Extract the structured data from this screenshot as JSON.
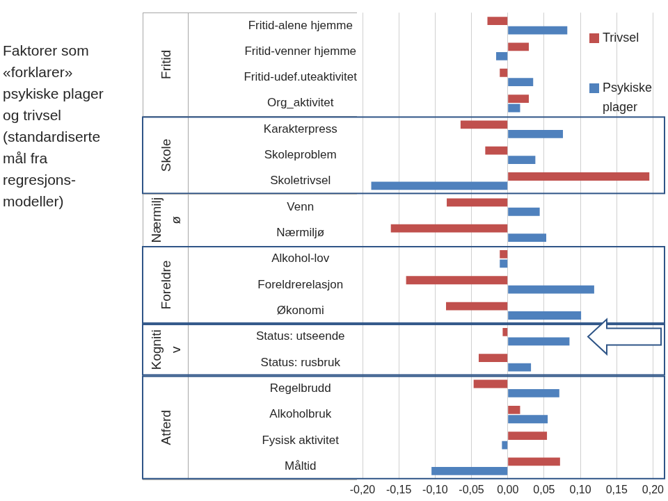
{
  "chart_data": {
    "type": "bar",
    "orientation": "horizontal",
    "title": [
      "Faktorer som",
      "«forklarer»",
      "psykiske plager",
      "og trivsel",
      "(standardiserte",
      "mål fra",
      "regresjons-",
      "modeller)"
    ],
    "categories": [
      "Fritid-alene hjemme",
      "Fritid-venner hjemme",
      "Fritid-udef.uteaktivitet",
      "Org_aktivitet",
      "Karakterpress",
      "Skoleproblem",
      "Skoletrivsel",
      "Venn",
      "Nærmiljø",
      "Alkohol-lov",
      "Foreldrerelasjon",
      "Økonomi",
      "Status: utseende",
      "Status: rusbruk",
      "Regelbrudd",
      "Alkoholbruk",
      "Fysisk aktivitet",
      "Måltid"
    ],
    "groups": [
      {
        "label": [
          "Fritid"
        ],
        "categories": [
          "Fritid-alene hjemme",
          "Fritid-venner hjemme",
          "Fritid-udef.uteaktivitet",
          "Org_aktivitet"
        ]
      },
      {
        "label": [
          "Skole"
        ],
        "categories": [
          "Karakterpress",
          "Skoleproblem",
          "Skoletrivsel"
        ]
      },
      {
        "label": [
          "Nærmilj",
          "ø"
        ],
        "categories": [
          "Venn",
          "Nærmiljø"
        ]
      },
      {
        "label": [
          "Foreldre"
        ],
        "categories": [
          "Alkohol-lov",
          "Foreldrerelasjon",
          "Økonomi"
        ]
      },
      {
        "label": [
          "Kogniti",
          "v"
        ],
        "categories": [
          "Status: utseende",
          "Status: rusbruk"
        ]
      },
      {
        "label": [
          "Atferd"
        ],
        "categories": [
          "Regelbrudd",
          "Alkoholbruk",
          "Fysisk aktivitet",
          "Måltid"
        ]
      }
    ],
    "series": [
      {
        "name": "Trivsel",
        "color": "#c0504d",
        "values": [
          -0.028,
          0.029,
          -0.011,
          0.029,
          -0.065,
          -0.031,
          0.195,
          -0.084,
          -0.161,
          -0.011,
          -0.14,
          -0.085,
          -0.007,
          -0.04,
          -0.047,
          0.017,
          0.054,
          0.072
        ]
      },
      {
        "name": "Psykiske plager",
        "color": "#4f81bd",
        "values": [
          0.082,
          -0.016,
          0.035,
          0.017,
          0.076,
          0.038,
          -0.188,
          0.044,
          0.053,
          -0.011,
          0.119,
          0.101,
          0.085,
          0.032,
          0.071,
          0.055,
          -0.008,
          -0.105
        ]
      }
    ],
    "xlim": [
      -0.2,
      0.2
    ],
    "xticks": [
      {
        "value": -0.2,
        "label": "-0,20"
      },
      {
        "value": -0.15,
        "label": "-0,15"
      },
      {
        "value": -0.1,
        "label": "-0,10"
      },
      {
        "value": -0.05,
        "label": "-0,05"
      },
      {
        "value": 0,
        "label": "0,00"
      },
      {
        "value": 0.05,
        "label": "0,05"
      },
      {
        "value": 0.1,
        "label": "0,10"
      },
      {
        "value": 0.15,
        "label": "0,15"
      },
      {
        "value": 0.2,
        "label": "0,20"
      }
    ],
    "grid": true,
    "legend": "upper right"
  }
}
